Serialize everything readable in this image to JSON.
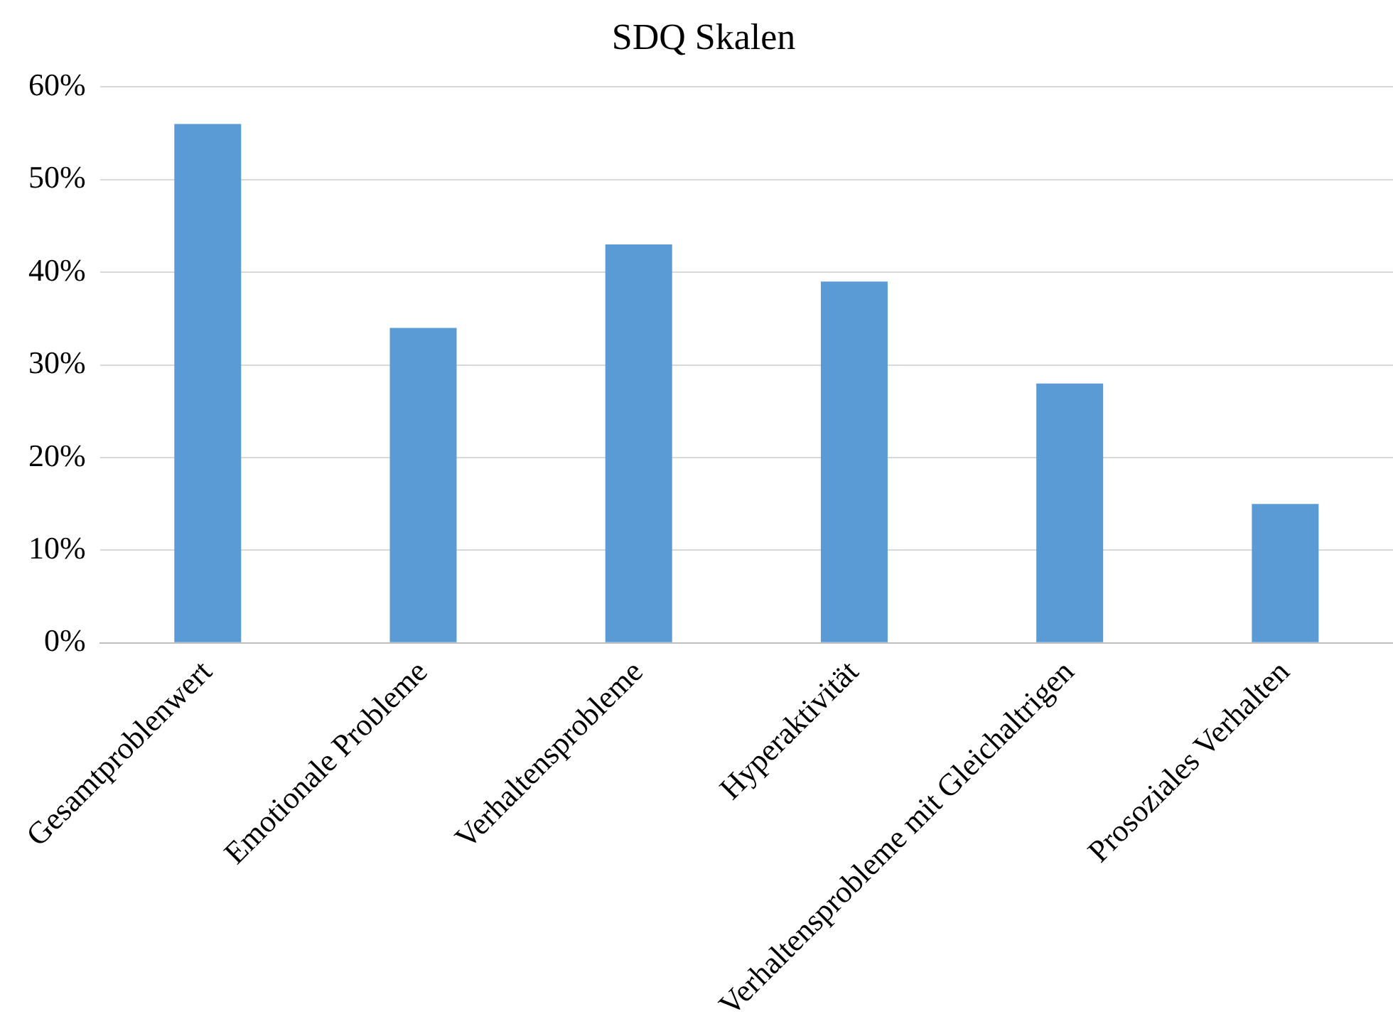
{
  "chart_data": {
    "type": "bar",
    "title": "SDQ Skalen",
    "categories": [
      "Gesamtproblenwert",
      "Emotionale Probleme",
      "Verhaltensprobleme",
      "Hyperaktivität",
      "Verhaltensprobleme mit Gleichaltrigen",
      "Prosoziales Verhalten"
    ],
    "values": [
      56,
      34,
      43,
      39,
      28,
      15
    ],
    "color": "#5b9bd5",
    "ylim": [
      0,
      60
    ],
    "yticks": [
      {
        "value": 0,
        "label": "0%"
      },
      {
        "value": 10,
        "label": "10%"
      },
      {
        "value": 20,
        "label": "20%"
      },
      {
        "value": 30,
        "label": "30%"
      },
      {
        "value": 40,
        "label": "40%"
      },
      {
        "value": 50,
        "label": "50%"
      },
      {
        "value": 60,
        "label": "60%"
      }
    ],
    "grid": "y"
  }
}
